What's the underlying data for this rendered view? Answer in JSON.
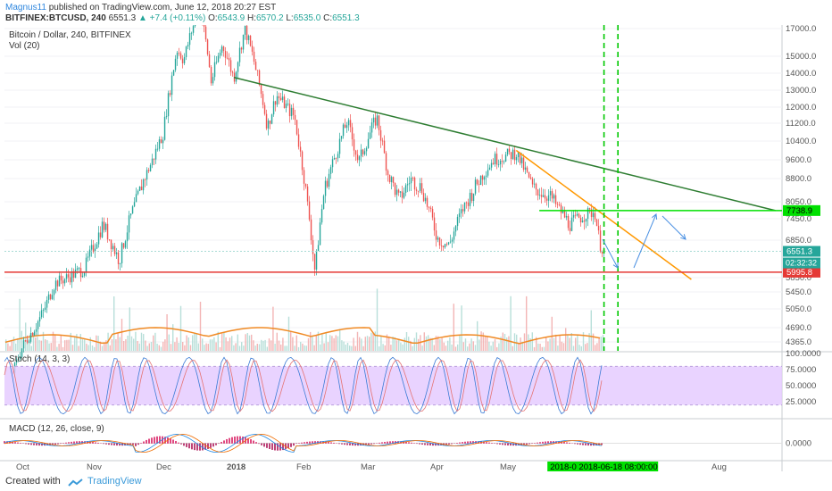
{
  "header": {
    "author": "Magnus11",
    "published": " published on TradingView.com, June 12, 2018 20:27 EST",
    "symbol": "BITFINEX:BTCUSD, 240",
    "price": "6551.3",
    "change": "+7.4 (+0.11%)",
    "o_label": "O:",
    "o": "6543.9",
    "h_label": "H:",
    "h": "6570.2",
    "l_label": "L:",
    "l": "6535.0",
    "c_label": "C:",
    "c": "6551.3"
  },
  "footer": {
    "created_with": "Created with",
    "brand": "TradingView"
  },
  "colors": {
    "up": "#26a69a",
    "down": "#ef5350",
    "trend_green": "#2e7d32",
    "trend_orange": "#ff9800",
    "support_red": "#e53935",
    "resistance_lime": "#00e000",
    "stoch_fill": "#e3c8ff",
    "volume_ma": "#f08a24",
    "arrow": "#4a90e2"
  },
  "chart_data": [
    {
      "type": "line",
      "title": "Bitcoin / Dollar, 240, BITFINEX",
      "volume_label": "Vol (20)",
      "price_axis_ticks": [
        17000,
        15000,
        14000,
        13000,
        12000,
        11200,
        10400,
        9600,
        8800,
        8050,
        7450,
        6850,
        5850,
        5450,
        5050,
        4690,
        4365
      ],
      "price_axis_labels": [
        "17000.0",
        "15000.0",
        "14000.0",
        "13000.0",
        "12000.0",
        "11200.0",
        "10400.0",
        "9600.0",
        "8800.0",
        "8050.0",
        "7450.0",
        "6850.0",
        "5850.0",
        "5450.0",
        "5050.0",
        "4690.0",
        "4365.0"
      ],
      "x_ticks": [
        "Oct",
        "Nov",
        "Dec",
        "2018",
        "Feb",
        "Mar",
        "Apr",
        "May",
        "Aug"
      ],
      "cursor_date": "2018-0 2018-06-18 08:00:00",
      "price_path": [
        [
          "2017-09-25",
          3700
        ],
        [
          "2017-10-01",
          4300
        ],
        [
          "2017-10-10",
          5000
        ],
        [
          "2017-10-15",
          5700
        ],
        [
          "2017-10-22",
          5900
        ],
        [
          "2017-10-28",
          6100
        ],
        [
          "2017-11-05",
          7300
        ],
        [
          "2017-11-12",
          6300
        ],
        [
          "2017-11-18",
          7800
        ],
        [
          "2017-11-26",
          9500
        ],
        [
          "2017-12-01",
          10800
        ],
        [
          "2017-12-07",
          15500
        ],
        [
          "2017-12-10",
          14800
        ],
        [
          "2017-12-17",
          19000
        ],
        [
          "2017-12-22",
          13500
        ],
        [
          "2017-12-27",
          15800
        ],
        [
          "2018-01-01",
          13700
        ],
        [
          "2018-01-06",
          17000
        ],
        [
          "2018-01-12",
          13500
        ],
        [
          "2018-01-16",
          11000
        ],
        [
          "2018-01-20",
          12700
        ],
        [
          "2018-01-28",
          11500
        ],
        [
          "2018-02-01",
          9000
        ],
        [
          "2018-02-06",
          6000
        ],
        [
          "2018-02-10",
          8400
        ],
        [
          "2018-02-20",
          11300
        ],
        [
          "2018-02-25",
          9500
        ],
        [
          "2018-03-05",
          11500
        ],
        [
          "2018-03-10",
          9000
        ],
        [
          "2018-03-15",
          8100
        ],
        [
          "2018-03-20",
          8800
        ],
        [
          "2018-03-25",
          8500
        ],
        [
          "2018-04-01",
          6900
        ],
        [
          "2018-04-06",
          6700
        ],
        [
          "2018-04-12",
          7800
        ],
        [
          "2018-04-20",
          8900
        ],
        [
          "2018-04-25",
          9600
        ],
        [
          "2018-05-05",
          9900
        ],
        [
          "2018-05-12",
          8500
        ],
        [
          "2018-05-20",
          8200
        ],
        [
          "2018-05-28",
          7300
        ],
        [
          "2018-06-04",
          7600
        ],
        [
          "2018-06-08",
          7700
        ],
        [
          "2018-06-10",
          6800
        ],
        [
          "2018-06-12",
          6551.3
        ]
      ],
      "lines": [
        {
          "name": "",
          "points": [
            [
              "2018-01-01",
              13750
            ],
            [
              "2018-08-26",
              7738.9
            ]
          ]
        },
        {
          "name": "",
          "points": [
            [
              "2018-05-05",
              10000
            ],
            [
              "2018-07-20",
              5800
            ]
          ]
        }
      ],
      "levels": [
        {
          "value": 7738.9,
          "label": "7738.9"
        },
        {
          "value": 6551.3,
          "label": "6551.3"
        },
        {
          "value": 5995.8,
          "label": "5995.8"
        }
      ],
      "countdown": "02:32:32",
      "vertical_markers": [
        "2018-06-12",
        "2018-06-18"
      ]
    },
    {
      "type": "line",
      "title": "Stoch (14, 3, 3)",
      "y_ticks": [
        "100.0000",
        "75.0000",
        "50.0000",
        "25.0000"
      ],
      "band": [
        20,
        80
      ]
    },
    {
      "type": "line",
      "title": "MACD (12, 26, close, 9)",
      "y_ticks": [
        "0.0000"
      ]
    }
  ]
}
